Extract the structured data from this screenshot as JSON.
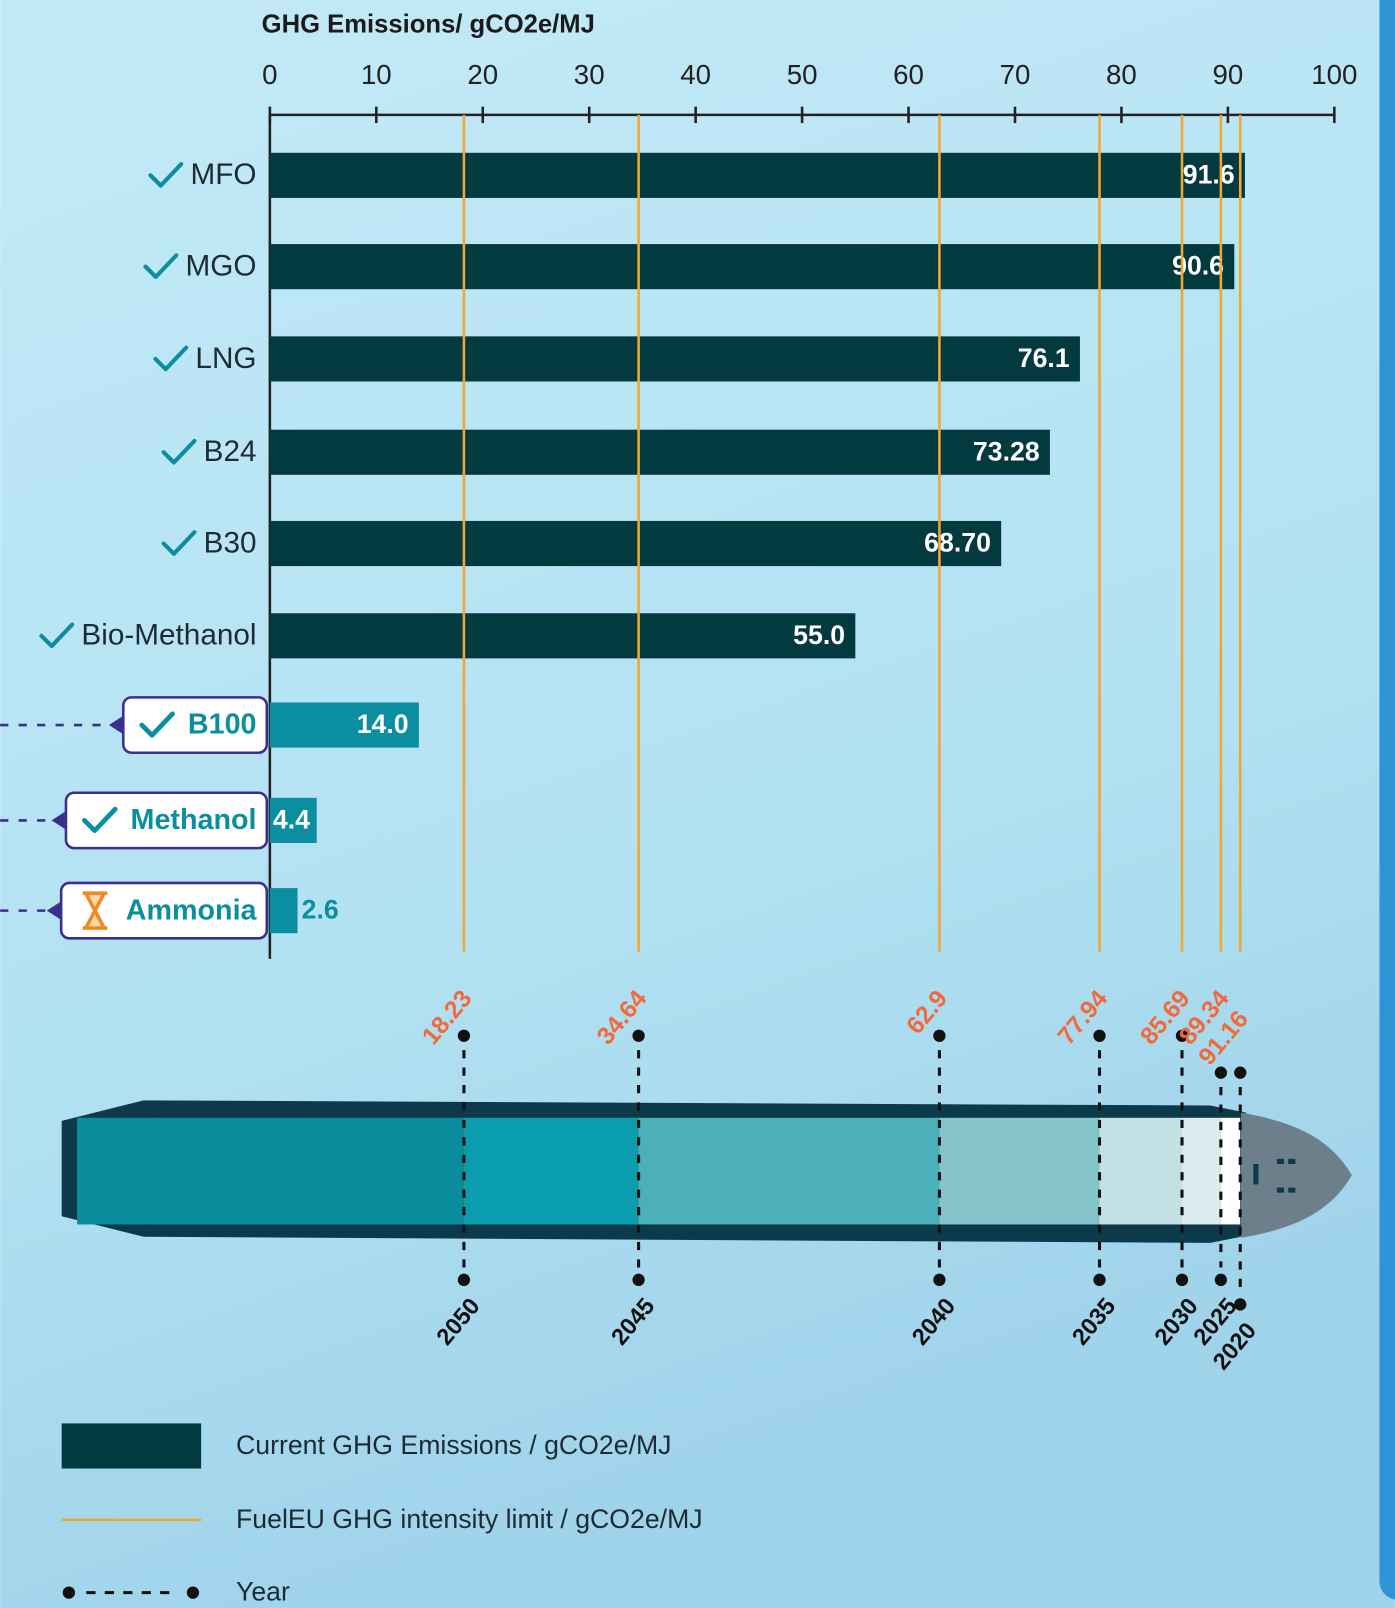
{
  "chart_data": {
    "type": "bar",
    "orientation": "horizontal",
    "xlabel": "GHG Emissions/ gCO2e/MJ",
    "xlim": [
      0,
      100
    ],
    "xticks": [
      0,
      10,
      20,
      30,
      40,
      50,
      60,
      70,
      80,
      90,
      100
    ],
    "categories": [
      "MFO",
      "MGO",
      "LNG",
      "B24",
      "B30",
      "Bio-Methanol",
      "B100",
      "Methanol",
      "Ammonia"
    ],
    "status": [
      "check",
      "check",
      "check",
      "check",
      "check",
      "check",
      "check",
      "check",
      "pending"
    ],
    "colors": [
      "#023a40",
      "#023a40",
      "#023a40",
      "#023a40",
      "#023a40",
      "#023a40",
      "#0b8fa0",
      "#0b8fa0",
      "#0b8fa0"
    ],
    "series": [
      {
        "name": "Current GHG Emissions / gCO2e/MJ",
        "color": "#023a40",
        "values": [
          91.6,
          90.6,
          76.1,
          73.28,
          68.7,
          55.0,
          14.0,
          4.4,
          2.6
        ],
        "value_labels": [
          "91.6",
          "90.6",
          "76.1",
          "73.28",
          "68.70",
          "55.0",
          "14.0",
          "4.4",
          "2.6"
        ]
      }
    ],
    "limits": {
      "name": "FuelEU GHG intensity limit / gCO2e/MJ",
      "color": "#f0a830",
      "values": [
        18.23,
        34.64,
        62.9,
        77.94,
        85.69,
        89.34,
        91.16
      ],
      "years": [
        "2050",
        "2045",
        "2040",
        "2035",
        "2030",
        "2025",
        "2020"
      ],
      "years_name": "Year"
    }
  }
}
